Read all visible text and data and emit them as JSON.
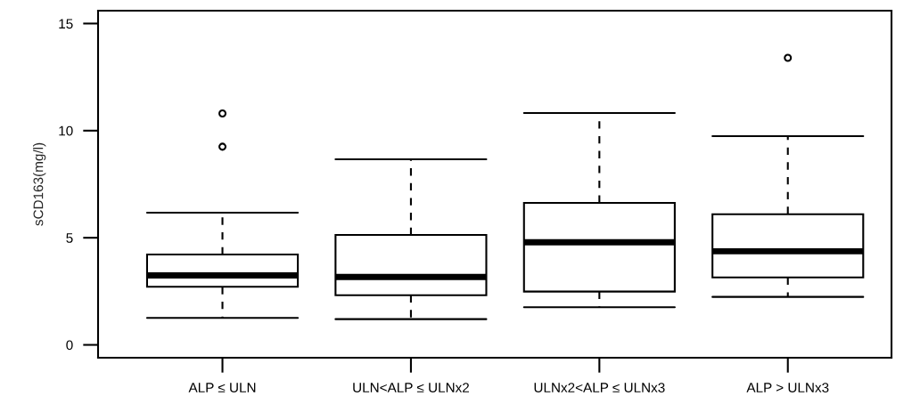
{
  "chart_data": {
    "type": "box",
    "ylabel": "sCD163(mg/l)",
    "categories": [
      "ALP ≤ ULN",
      "ULN<ALP ≤ ULNx2",
      "ULNx2<ALP ≤ ULNx3",
      "ALP > ULNx3"
    ],
    "boxes": [
      {
        "low": 1.26,
        "q1": 2.71,
        "median": 3.24,
        "q3": 4.22,
        "high": 6.17,
        "outliers": [
          10.8,
          9.25
        ]
      },
      {
        "low": 1.2,
        "q1": 2.32,
        "median": 3.17,
        "q3": 5.13,
        "high": 8.66
      },
      {
        "low": 1.76,
        "q1": 2.49,
        "median": 4.79,
        "q3": 6.63,
        "high": 10.82
      },
      {
        "low": 2.24,
        "q1": 3.15,
        "median": 4.37,
        "q3": 6.1,
        "high": 9.74,
        "outliers": [
          13.4
        ]
      }
    ],
    "color": "#ffffff",
    "ylim": [
      -0.6,
      15.6
    ],
    "yticks": [
      0,
      5,
      10,
      15
    ],
    "grid": false,
    "legend": false
  }
}
